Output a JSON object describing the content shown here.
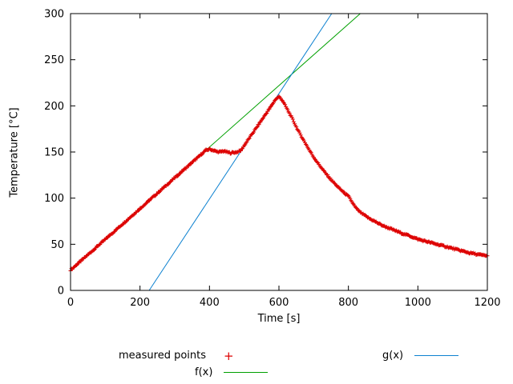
{
  "chart_data": {
    "type": "scatter",
    "title": "",
    "xlabel": "Time [s]",
    "ylabel": "Temperature [°C]",
    "xlim": [
      0,
      1200
    ],
    "ylim": [
      0,
      300
    ],
    "xticks": [
      0,
      200,
      400,
      600,
      800,
      1000,
      1200
    ],
    "yticks": [
      0,
      50,
      100,
      150,
      200,
      250,
      300
    ],
    "grid": false,
    "border_color": "#000000",
    "series": [
      {
        "name": "measured points",
        "type": "points",
        "marker": "plus",
        "color": "#dd0000",
        "points": [
          [
            0,
            22.0
          ],
          [
            10,
            25.3
          ],
          [
            20,
            28.7
          ],
          [
            30,
            32.0
          ],
          [
            40,
            35.3
          ],
          [
            50,
            38.7
          ],
          [
            60,
            42.0
          ],
          [
            70,
            45.3
          ],
          [
            80,
            48.7
          ],
          [
            90,
            52.0
          ],
          [
            100,
            55.3
          ],
          [
            110,
            58.7
          ],
          [
            120,
            62.0
          ],
          [
            130,
            65.3
          ],
          [
            140,
            68.7
          ],
          [
            150,
            72.0
          ],
          [
            160,
            75.3
          ],
          [
            170,
            78.7
          ],
          [
            180,
            82.0
          ],
          [
            190,
            85.3
          ],
          [
            200,
            88.7
          ],
          [
            210,
            92.0
          ],
          [
            220,
            95.3
          ],
          [
            230,
            98.7
          ],
          [
            240,
            102.0
          ],
          [
            250,
            105.3
          ],
          [
            260,
            108.7
          ],
          [
            270,
            112.0
          ],
          [
            280,
            115.3
          ],
          [
            290,
            118.7
          ],
          [
            300,
            122.0
          ],
          [
            310,
            125.3
          ],
          [
            320,
            128.7
          ],
          [
            330,
            132.0
          ],
          [
            340,
            135.3
          ],
          [
            350,
            138.7
          ],
          [
            360,
            142.0
          ],
          [
            370,
            145.3
          ],
          [
            380,
            148.7
          ],
          [
            390,
            152.0
          ],
          [
            400,
            153.0
          ],
          [
            410,
            152.0
          ],
          [
            420,
            150.5
          ],
          [
            430,
            150.0
          ],
          [
            440,
            151.0
          ],
          [
            450,
            150.0
          ],
          [
            460,
            149.0
          ],
          [
            470,
            149.5
          ],
          [
            480,
            150.0
          ],
          [
            490,
            151.5
          ],
          [
            500,
            157.0
          ],
          [
            510,
            162.5
          ],
          [
            520,
            168.0
          ],
          [
            530,
            173.5
          ],
          [
            540,
            179.0
          ],
          [
            550,
            184.5
          ],
          [
            560,
            190.0
          ],
          [
            570,
            195.5
          ],
          [
            580,
            201.0
          ],
          [
            590,
            207.0
          ],
          [
            600,
            210.0
          ],
          [
            610,
            206.0
          ],
          [
            620,
            199.0
          ],
          [
            630,
            192.0
          ],
          [
            640,
            185.0
          ],
          [
            650,
            177.0
          ],
          [
            660,
            170.0
          ],
          [
            670,
            163.5
          ],
          [
            680,
            157.0
          ],
          [
            690,
            150.5
          ],
          [
            700,
            144.5
          ],
          [
            710,
            139.0
          ],
          [
            720,
            134.0
          ],
          [
            730,
            129.0
          ],
          [
            740,
            124.5
          ],
          [
            750,
            120.0
          ],
          [
            760,
            116.0
          ],
          [
            770,
            112.0
          ],
          [
            780,
            108.5
          ],
          [
            790,
            105.0
          ],
          [
            800,
            102.0
          ],
          [
            810,
            96.0
          ],
          [
            820,
            90.0
          ],
          [
            830,
            86.0
          ],
          [
            840,
            83.0
          ],
          [
            850,
            80.5
          ],
          [
            860,
            78.0
          ],
          [
            870,
            76.0
          ],
          [
            880,
            74.0
          ],
          [
            890,
            72.0
          ],
          [
            900,
            70.0
          ],
          [
            910,
            68.5
          ],
          [
            920,
            67.0
          ],
          [
            930,
            65.5
          ],
          [
            940,
            64.0
          ],
          [
            950,
            62.5
          ],
          [
            960,
            61.0
          ],
          [
            970,
            60.0
          ],
          [
            980,
            58.5
          ],
          [
            990,
            57.0
          ],
          [
            1000,
            55.5
          ],
          [
            1010,
            54.5
          ],
          [
            1020,
            53.5
          ],
          [
            1030,
            52.5
          ],
          [
            1040,
            51.5
          ],
          [
            1050,
            50.5
          ],
          [
            1060,
            49.5
          ],
          [
            1070,
            48.5
          ],
          [
            1080,
            47.5
          ],
          [
            1090,
            46.5
          ],
          [
            1100,
            45.5
          ],
          [
            1110,
            44.5
          ],
          [
            1120,
            43.5
          ],
          [
            1130,
            42.5
          ],
          [
            1140,
            41.5
          ],
          [
            1150,
            40.5
          ],
          [
            1160,
            40.0
          ],
          [
            1170,
            39.0
          ],
          [
            1180,
            38.5
          ],
          [
            1190,
            38.0
          ],
          [
            1200,
            37.5
          ]
        ]
      },
      {
        "name": "f(x)",
        "type": "line",
        "color": "#00a000",
        "slope": 0.3333,
        "intercept": 22.0
      },
      {
        "name": "g(x)",
        "type": "line",
        "color": "#0c81d0",
        "slope": 0.571,
        "intercept": -129.3
      }
    ],
    "legend": {
      "position": "below-plot",
      "entries": [
        {
          "label": "measured points",
          "swatch": "plus",
          "color": "#dd0000"
        },
        {
          "label": "f(x)",
          "swatch": "line",
          "color": "#00a000"
        },
        {
          "label": "g(x)",
          "swatch": "line",
          "color": "#0c81d0"
        }
      ]
    }
  }
}
